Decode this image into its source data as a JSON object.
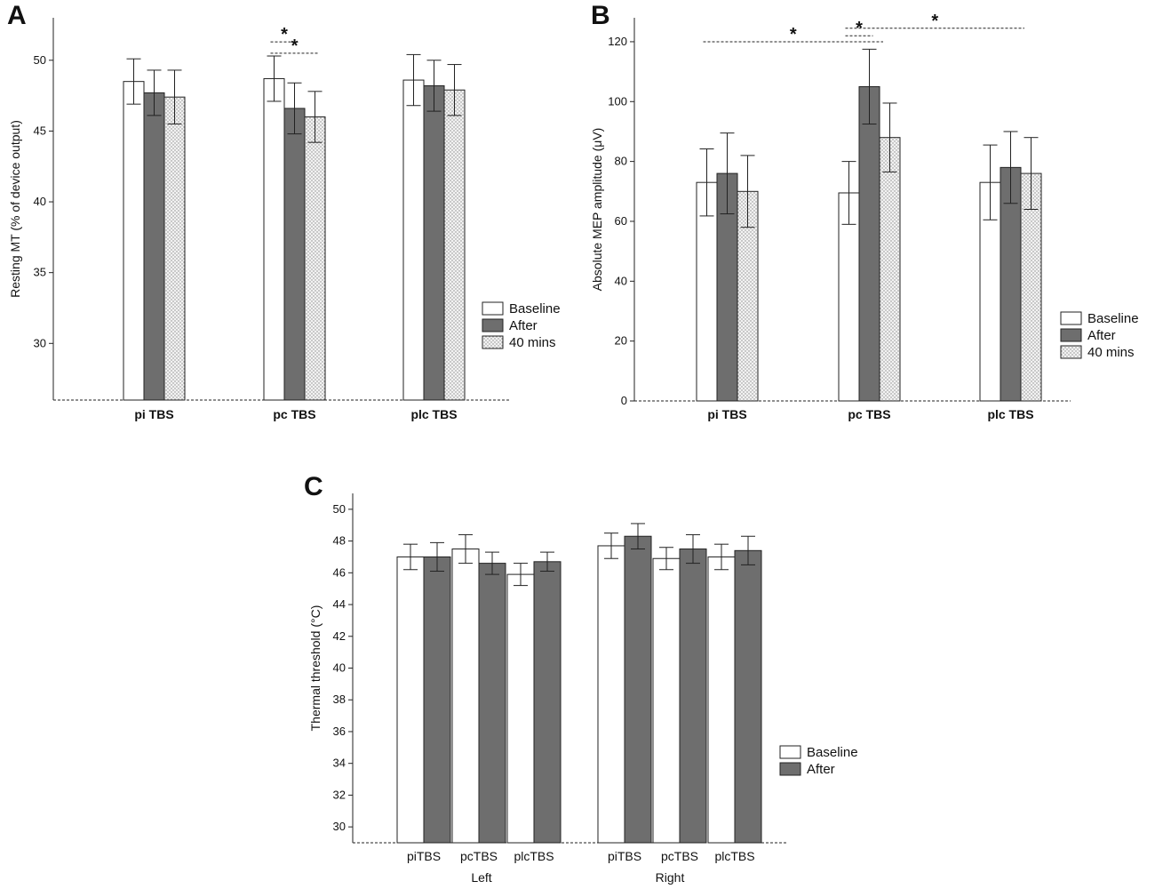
{
  "chart_data": [
    {
      "type": "bar",
      "panel_label": "A",
      "ylabel": "Resting MT (% of device output)",
      "xlabel": "",
      "ylim": [
        26,
        53
      ],
      "yticks": [
        30,
        35,
        40,
        45,
        50
      ],
      "categories": [
        "pi TBS",
        "pc TBS",
        "plc TBS"
      ],
      "series": [
        {
          "name": "Baseline",
          "values": [
            48.5,
            48.7,
            48.6
          ],
          "errors": [
            1.6,
            1.6,
            1.8
          ]
        },
        {
          "name": "After",
          "values": [
            47.7,
            46.6,
            48.2
          ],
          "errors": [
            1.6,
            1.8,
            1.8
          ]
        },
        {
          "name": "40 mins",
          "values": [
            47.4,
            46.0,
            47.9
          ],
          "errors": [
            1.9,
            1.8,
            1.8
          ]
        }
      ],
      "legend_position": "right",
      "significance": [
        {
          "label": "*",
          "group": 1,
          "from": 0,
          "to": 1,
          "level": 51.3
        },
        {
          "label": "*",
          "group": 1,
          "from": 0,
          "to": 2,
          "level": 50.5
        }
      ]
    },
    {
      "type": "bar",
      "panel_label": "B",
      "ylabel": "Absolute MEP amplitude (μV)",
      "xlabel": "",
      "ylim": [
        0,
        128
      ],
      "yticks": [
        0,
        20,
        40,
        60,
        80,
        100,
        120
      ],
      "categories": [
        "pi TBS",
        "pc TBS",
        "plc TBS"
      ],
      "series": [
        {
          "name": "Baseline",
          "values": [
            73,
            69.5,
            73
          ],
          "errors": [
            11.2,
            10.5,
            12.5
          ]
        },
        {
          "name": "After",
          "values": [
            76,
            105,
            78
          ],
          "errors": [
            13.5,
            12.5,
            12
          ]
        },
        {
          "name": "40 mins",
          "values": [
            70,
            88,
            76
          ],
          "errors": [
            12,
            11.5,
            12
          ]
        }
      ],
      "legend_position": "right",
      "significance": [
        {
          "label": "*",
          "from_group": 0,
          "to_group": 1,
          "level": 120
        },
        {
          "label": "*",
          "group": 1,
          "from": 0,
          "to": 1,
          "level": 122
        },
        {
          "label": "*",
          "from_group": 1,
          "to_group": 2,
          "level": 124.5
        }
      ]
    },
    {
      "type": "bar",
      "panel_label": "C",
      "ylabel": "Thermal threshold (°C)",
      "xlabel": "",
      "ylim": [
        29,
        51
      ],
      "yticks": [
        30,
        32,
        34,
        36,
        38,
        40,
        42,
        44,
        46,
        48,
        50
      ],
      "groups": [
        "Left",
        "Right"
      ],
      "categories": [
        "piTBS",
        "pcTBS",
        "plcTBS",
        "piTBS",
        "pcTBS",
        "plcTBS"
      ],
      "series": [
        {
          "name": "Baseline",
          "values": [
            47.0,
            47.5,
            45.9,
            47.7,
            46.9,
            47.0
          ],
          "errors": [
            0.8,
            0.9,
            0.7,
            0.8,
            0.7,
            0.8
          ]
        },
        {
          "name": "After",
          "values": [
            47.0,
            46.6,
            46.7,
            48.3,
            47.5,
            47.4
          ],
          "errors": [
            0.9,
            0.7,
            0.6,
            0.8,
            0.9,
            0.9
          ]
        }
      ],
      "legend_position": "right"
    }
  ]
}
